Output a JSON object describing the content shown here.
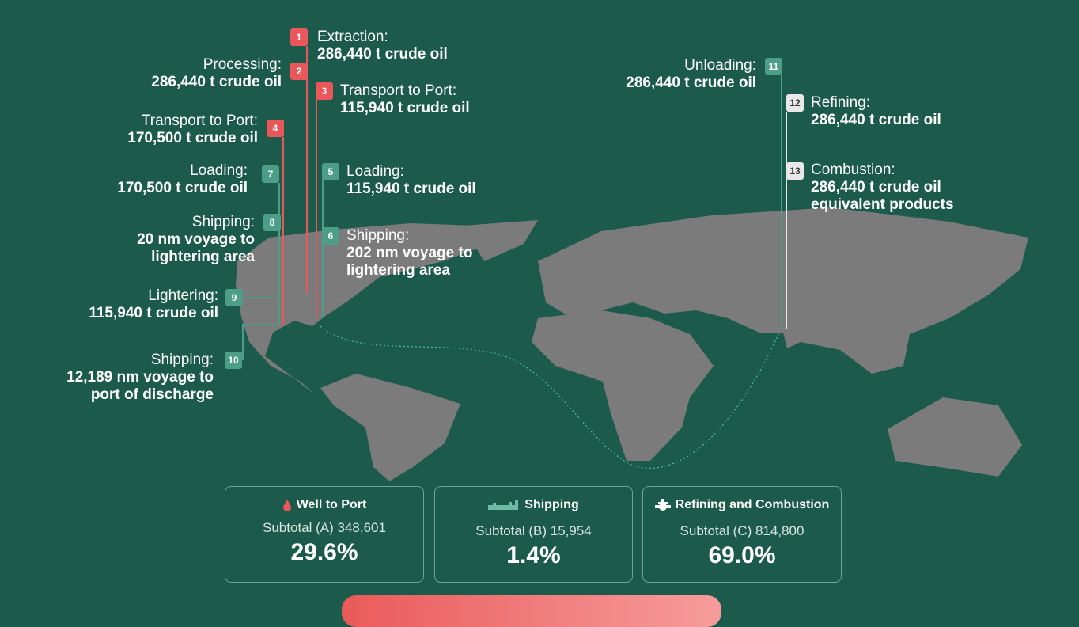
{
  "steps": [
    {
      "n": "1",
      "title": "Extraction:",
      "value": "286,440 t crude oil"
    },
    {
      "n": "2",
      "title": "Processing:",
      "value": "286,440 t crude oil"
    },
    {
      "n": "3",
      "title": "Transport to Port:",
      "value": "115,940 t crude oil"
    },
    {
      "n": "4",
      "title": "Transport to Port:",
      "value": "170,500 t crude oil"
    },
    {
      "n": "5",
      "title": "Loading:",
      "value": "115,940 t crude oil"
    },
    {
      "n": "6",
      "title": "Shipping:",
      "value": "202 nm voyage to",
      "value2": "lightering area"
    },
    {
      "n": "7",
      "title": "Loading:",
      "value": "170,500 t crude oil"
    },
    {
      "n": "8",
      "title": "Shipping:",
      "value": "20 nm voyage to",
      "value2": "lightering area"
    },
    {
      "n": "9",
      "title": "Lightering:",
      "value": "115,940 t crude oil"
    },
    {
      "n": "10",
      "title": "Shipping:",
      "value": "12,189 nm voyage to",
      "value2": "port of discharge"
    },
    {
      "n": "11",
      "title": "Unloading:",
      "value": "286,440 t crude oil"
    },
    {
      "n": "12",
      "title": "Refining:",
      "value": "286,440 t crude oil"
    },
    {
      "n": "13",
      "title": "Combustion:",
      "value": "286,440 t crude oil",
      "value2": "equivalent products"
    }
  ],
  "cards": [
    {
      "icon": "oil-drop-icon",
      "title": "Well to Port",
      "subtotal": "Subtotal (A) 348,601",
      "percent": "29.6%"
    },
    {
      "icon": "ship-icon",
      "title": "Shipping",
      "subtotal": "Subtotal (B) 15,954",
      "percent": "1.4%"
    },
    {
      "icon": "refinery-valve-icon",
      "title": "Refining and Combustion",
      "subtotal": "Subtotal (C) 814,800",
      "percent": "69.0%"
    }
  ],
  "colors": {
    "background": "#1c5a4b",
    "well_to_port": "#e9575b",
    "shipping": "#4c9e86",
    "refining": "#e8e8e8",
    "land": "#7a7a7a"
  }
}
